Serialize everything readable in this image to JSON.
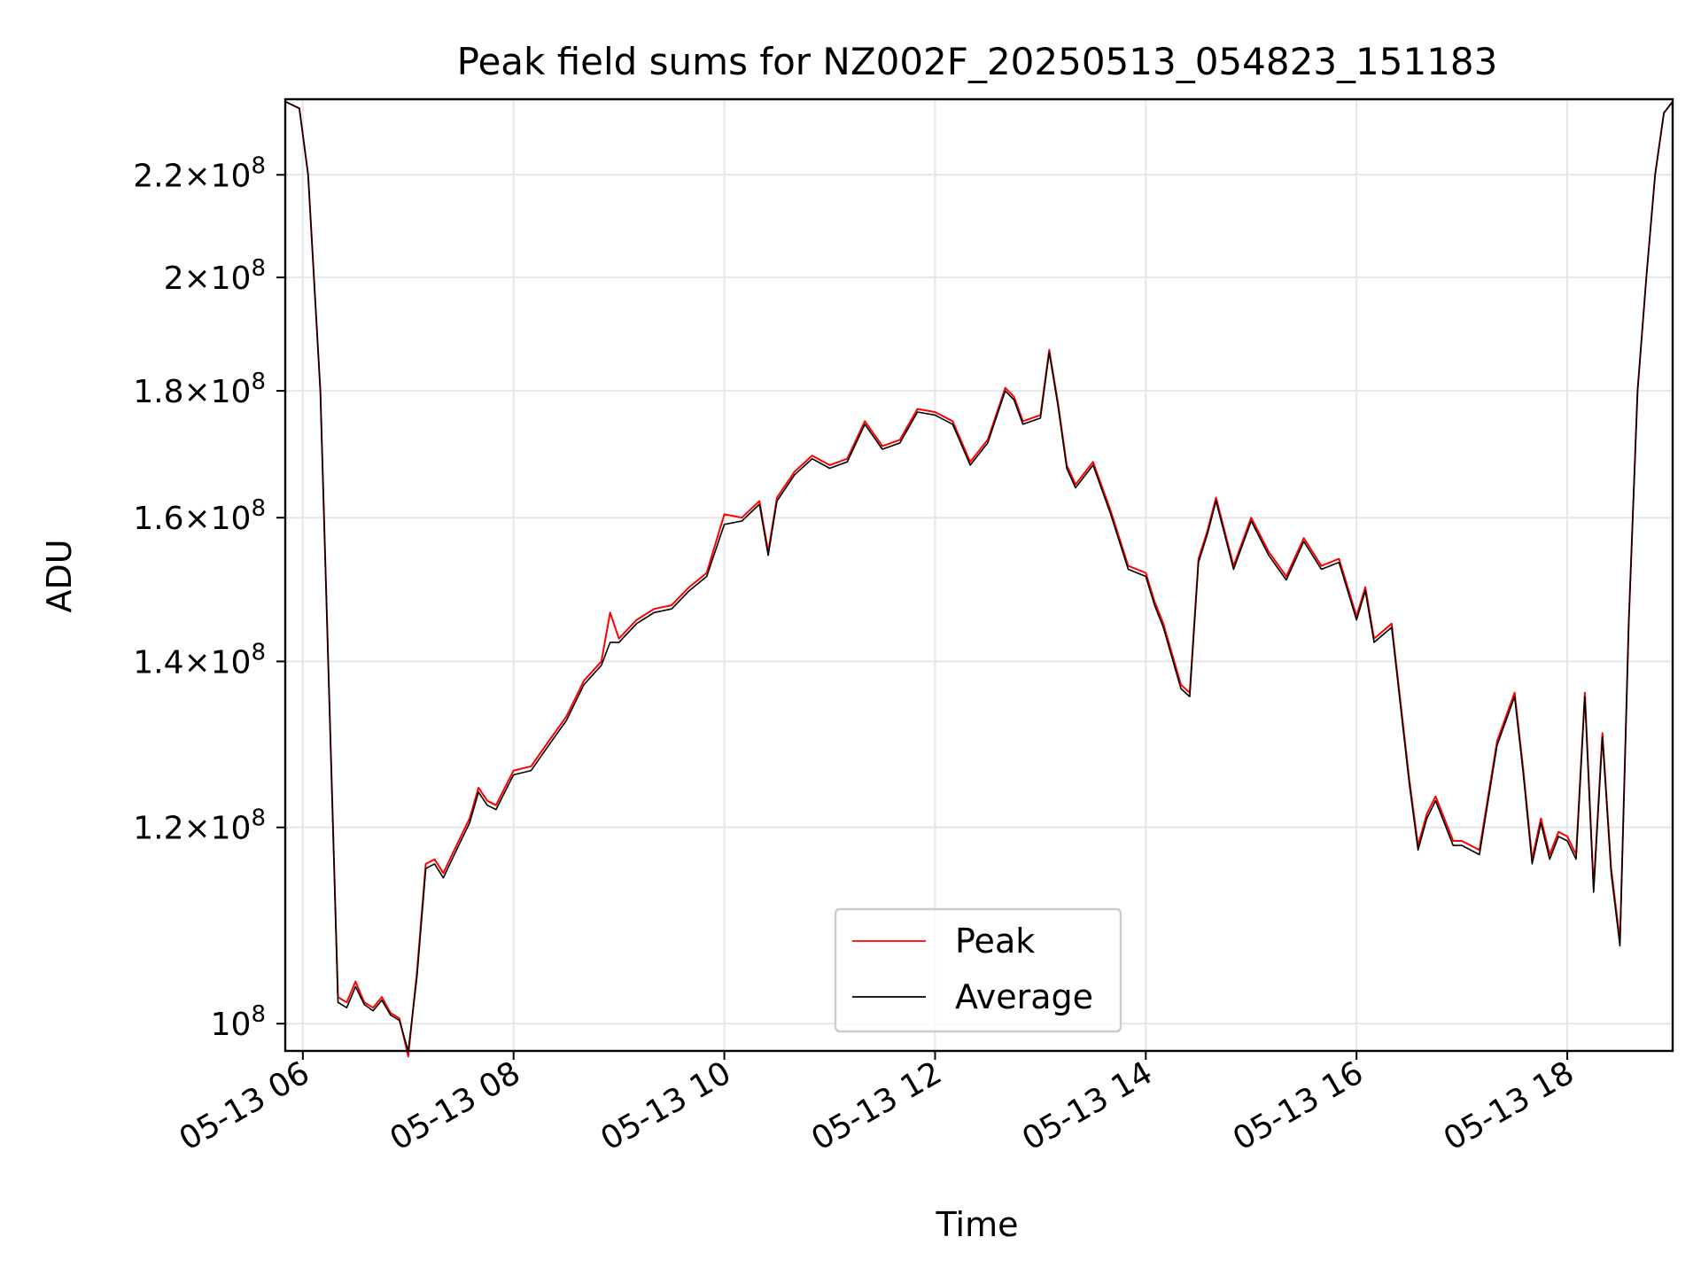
{
  "chart_data": {
    "type": "line",
    "title": "Peak field sums for NZ002F_20250513_054823_151183",
    "xlabel": "Time",
    "ylabel": "ADU",
    "y_scale": "log",
    "ylim": [
      97500000,
      236000000
    ],
    "xlim": [
      "2025-05-13 05:50",
      "2025-05-13 19:00"
    ],
    "grid": true,
    "legend_position": "lower-center",
    "x_ticks": [
      "05-13 06",
      "05-13 08",
      "05-13 10",
      "05-13 12",
      "05-13 14",
      "05-13 16",
      "05-13 18"
    ],
    "x_tick_times": [
      "2025-05-13 06:00",
      "2025-05-13 08:00",
      "2025-05-13 10:00",
      "2025-05-13 12:00",
      "2025-05-13 14:00",
      "2025-05-13 16:00",
      "2025-05-13 18:00"
    ],
    "y_ticks": [
      {
        "value": 100000000,
        "mantissa": "",
        "exp": "8"
      },
      {
        "value": 120000000,
        "mantissa": "1.2",
        "exp": "8"
      },
      {
        "value": 140000000,
        "mantissa": "1.4",
        "exp": "8"
      },
      {
        "value": 160000000,
        "mantissa": "1.6",
        "exp": "8"
      },
      {
        "value": 180000000,
        "mantissa": "1.8",
        "exp": "8"
      },
      {
        "value": 200000000,
        "mantissa": "2",
        "exp": "8"
      },
      {
        "value": 220000000,
        "mantissa": "2.2",
        "exp": "8"
      }
    ],
    "series": [
      {
        "name": "Peak",
        "color": "#ff0000",
        "x": [
          "2025-05-13 05:50",
          "2025-05-13 05:58",
          "2025-05-13 06:03",
          "2025-05-13 06:10",
          "2025-05-13 06:20",
          "2025-05-13 06:25",
          "2025-05-13 06:30",
          "2025-05-13 06:35",
          "2025-05-13 06:40",
          "2025-05-13 06:45",
          "2025-05-13 06:50",
          "2025-05-13 06:55",
          "2025-05-13 07:00",
          "2025-05-13 07:05",
          "2025-05-13 07:10",
          "2025-05-13 07:15",
          "2025-05-13 07:20",
          "2025-05-13 07:25",
          "2025-05-13 07:30",
          "2025-05-13 07:35",
          "2025-05-13 07:40",
          "2025-05-13 07:45",
          "2025-05-13 07:50",
          "2025-05-13 07:55",
          "2025-05-13 08:00",
          "2025-05-13 08:10",
          "2025-05-13 08:20",
          "2025-05-13 08:30",
          "2025-05-13 08:40",
          "2025-05-13 08:50",
          "2025-05-13 08:55",
          "2025-05-13 09:00",
          "2025-05-13 09:10",
          "2025-05-13 09:20",
          "2025-05-13 09:30",
          "2025-05-13 09:40",
          "2025-05-13 09:50",
          "2025-05-13 10:00",
          "2025-05-13 10:10",
          "2025-05-13 10:20",
          "2025-05-13 10:25",
          "2025-05-13 10:30",
          "2025-05-13 10:40",
          "2025-05-13 10:50",
          "2025-05-13 11:00",
          "2025-05-13 11:10",
          "2025-05-13 11:20",
          "2025-05-13 11:30",
          "2025-05-13 11:40",
          "2025-05-13 11:50",
          "2025-05-13 12:00",
          "2025-05-13 12:10",
          "2025-05-13 12:20",
          "2025-05-13 12:30",
          "2025-05-13 12:40",
          "2025-05-13 12:45",
          "2025-05-13 12:50",
          "2025-05-13 13:00",
          "2025-05-13 13:05",
          "2025-05-13 13:10",
          "2025-05-13 13:15",
          "2025-05-13 13:20",
          "2025-05-13 13:30",
          "2025-05-13 13:40",
          "2025-05-13 13:50",
          "2025-05-13 14:00",
          "2025-05-13 14:05",
          "2025-05-13 14:10",
          "2025-05-13 14:20",
          "2025-05-13 14:25",
          "2025-05-13 14:30",
          "2025-05-13 14:35",
          "2025-05-13 14:40",
          "2025-05-13 14:50",
          "2025-05-13 15:00",
          "2025-05-13 15:10",
          "2025-05-13 15:20",
          "2025-05-13 15:30",
          "2025-05-13 15:40",
          "2025-05-13 15:50",
          "2025-05-13 16:00",
          "2025-05-13 16:05",
          "2025-05-13 16:10",
          "2025-05-13 16:20",
          "2025-05-13 16:30",
          "2025-05-13 16:35",
          "2025-05-13 16:40",
          "2025-05-13 16:45",
          "2025-05-13 16:50",
          "2025-05-13 16:55",
          "2025-05-13 17:00",
          "2025-05-13 17:10",
          "2025-05-13 17:20",
          "2025-05-13 17:30",
          "2025-05-13 17:35",
          "2025-05-13 17:40",
          "2025-05-13 17:45",
          "2025-05-13 17:50",
          "2025-05-13 17:55",
          "2025-05-13 18:00",
          "2025-05-13 18:05",
          "2025-05-13 18:10",
          "2025-05-13 18:15",
          "2025-05-13 18:20",
          "2025-05-13 18:25",
          "2025-05-13 18:30",
          "2025-05-13 18:35",
          "2025-05-13 18:40",
          "2025-05-13 18:45",
          "2025-05-13 18:50",
          "2025-05-13 18:55",
          "2025-05-13 19:00"
        ],
        "values": [
          235500000,
          234000000,
          220000000,
          180000000,
          102500000,
          102000000,
          104000000,
          102000000,
          101500000,
          102500000,
          101000000,
          100500000,
          97000000,
          105000000,
          116000000,
          116500000,
          115000000,
          117000000,
          119000000,
          121000000,
          124500000,
          123000000,
          122500000,
          124500000,
          126500000,
          127000000,
          130000000,
          133000000,
          137500000,
          140000000,
          146500000,
          143000000,
          145500000,
          147000000,
          147500000,
          150000000,
          152000000,
          160500000,
          160000000,
          162500000,
          155000000,
          163000000,
          167000000,
          169500000,
          168000000,
          169000000,
          175000000,
          171000000,
          172000000,
          177000000,
          176500000,
          175000000,
          168500000,
          172000000,
          180500000,
          179000000,
          175000000,
          176000000,
          187000000,
          178000000,
          168000000,
          165000000,
          168500000,
          161000000,
          153000000,
          152000000,
          148000000,
          145000000,
          137000000,
          136000000,
          154000000,
          158000000,
          163000000,
          153000000,
          160000000,
          155000000,
          151500000,
          157000000,
          153000000,
          154000000,
          146000000,
          150000000,
          143000000,
          145000000,
          125500000,
          118000000,
          121500000,
          123500000,
          121000000,
          118500000,
          118500000,
          117500000,
          130000000,
          136000000,
          126500000,
          116500000,
          121000000,
          117000000,
          119500000,
          119000000,
          117000000,
          136000000,
          113500000,
          131000000,
          115500000,
          108000000,
          145000000,
          180000000,
          200000000,
          220000000,
          233000000,
          235500000
        ]
      },
      {
        "name": "Average",
        "color": "#000000",
        "x": [
          "2025-05-13 05:50",
          "2025-05-13 05:58",
          "2025-05-13 06:03",
          "2025-05-13 06:10",
          "2025-05-13 06:20",
          "2025-05-13 06:25",
          "2025-05-13 06:30",
          "2025-05-13 06:35",
          "2025-05-13 06:40",
          "2025-05-13 06:45",
          "2025-05-13 06:50",
          "2025-05-13 06:55",
          "2025-05-13 07:00",
          "2025-05-13 07:05",
          "2025-05-13 07:10",
          "2025-05-13 07:15",
          "2025-05-13 07:20",
          "2025-05-13 07:25",
          "2025-05-13 07:30",
          "2025-05-13 07:35",
          "2025-05-13 07:40",
          "2025-05-13 07:45",
          "2025-05-13 07:50",
          "2025-05-13 07:55",
          "2025-05-13 08:00",
          "2025-05-13 08:10",
          "2025-05-13 08:20",
          "2025-05-13 08:30",
          "2025-05-13 08:40",
          "2025-05-13 08:50",
          "2025-05-13 08:55",
          "2025-05-13 09:00",
          "2025-05-13 09:10",
          "2025-05-13 09:20",
          "2025-05-13 09:30",
          "2025-05-13 09:40",
          "2025-05-13 09:50",
          "2025-05-13 10:00",
          "2025-05-13 10:10",
          "2025-05-13 10:20",
          "2025-05-13 10:25",
          "2025-05-13 10:30",
          "2025-05-13 10:40",
          "2025-05-13 10:50",
          "2025-05-13 11:00",
          "2025-05-13 11:10",
          "2025-05-13 11:20",
          "2025-05-13 11:30",
          "2025-05-13 11:40",
          "2025-05-13 11:50",
          "2025-05-13 12:00",
          "2025-05-13 12:10",
          "2025-05-13 12:20",
          "2025-05-13 12:30",
          "2025-05-13 12:40",
          "2025-05-13 12:45",
          "2025-05-13 12:50",
          "2025-05-13 13:00",
          "2025-05-13 13:05",
          "2025-05-13 13:10",
          "2025-05-13 13:15",
          "2025-05-13 13:20",
          "2025-05-13 13:30",
          "2025-05-13 13:40",
          "2025-05-13 13:50",
          "2025-05-13 14:00",
          "2025-05-13 14:05",
          "2025-05-13 14:10",
          "2025-05-13 14:20",
          "2025-05-13 14:25",
          "2025-05-13 14:30",
          "2025-05-13 14:35",
          "2025-05-13 14:40",
          "2025-05-13 14:50",
          "2025-05-13 15:00",
          "2025-05-13 15:10",
          "2025-05-13 15:20",
          "2025-05-13 15:30",
          "2025-05-13 15:40",
          "2025-05-13 15:50",
          "2025-05-13 16:00",
          "2025-05-13 16:05",
          "2025-05-13 16:10",
          "2025-05-13 16:20",
          "2025-05-13 16:30",
          "2025-05-13 16:35",
          "2025-05-13 16:40",
          "2025-05-13 16:45",
          "2025-05-13 16:50",
          "2025-05-13 16:55",
          "2025-05-13 17:00",
          "2025-05-13 17:10",
          "2025-05-13 17:20",
          "2025-05-13 17:30",
          "2025-05-13 17:35",
          "2025-05-13 17:40",
          "2025-05-13 17:45",
          "2025-05-13 17:50",
          "2025-05-13 17:55",
          "2025-05-13 18:00",
          "2025-05-13 18:05",
          "2025-05-13 18:10",
          "2025-05-13 18:15",
          "2025-05-13 18:20",
          "2025-05-13 18:25",
          "2025-05-13 18:30",
          "2025-05-13 18:35",
          "2025-05-13 18:40",
          "2025-05-13 18:45",
          "2025-05-13 18:50",
          "2025-05-13 18:55",
          "2025-05-13 19:00"
        ],
        "values": [
          235500000,
          234000000,
          220000000,
          180000000,
          102000000,
          101500000,
          103500000,
          101800000,
          101200000,
          102200000,
          100800000,
          100300000,
          97500000,
          104500000,
          115500000,
          116000000,
          114500000,
          116500000,
          118500000,
          120500000,
          124000000,
          122500000,
          122000000,
          124000000,
          126000000,
          126500000,
          129500000,
          132500000,
          137000000,
          139500000,
          142500000,
          142500000,
          145000000,
          146500000,
          147000000,
          149500000,
          151500000,
          159000000,
          159500000,
          162000000,
          154500000,
          162500000,
          166500000,
          169000000,
          167500000,
          168500000,
          174500000,
          170500000,
          171500000,
          176500000,
          176000000,
          174500000,
          168000000,
          171500000,
          180000000,
          178500000,
          174500000,
          175500000,
          186500000,
          177500000,
          167500000,
          164500000,
          168000000,
          160500000,
          152500000,
          151500000,
          147500000,
          144500000,
          136500000,
          135500000,
          153500000,
          157500000,
          162500000,
          152500000,
          159500000,
          154500000,
          151000000,
          156500000,
          152500000,
          153500000,
          145500000,
          149500000,
          142500000,
          144500000,
          125000000,
          117500000,
          121000000,
          123000000,
          120500000,
          118000000,
          118000000,
          117000000,
          129500000,
          135500000,
          126000000,
          116000000,
          120500000,
          116500000,
          119000000,
          118500000,
          116500000,
          135500000,
          113000000,
          130500000,
          115000000,
          107500000,
          145000000,
          180000000,
          200000000,
          220000000,
          233000000,
          235500000
        ]
      }
    ]
  }
}
